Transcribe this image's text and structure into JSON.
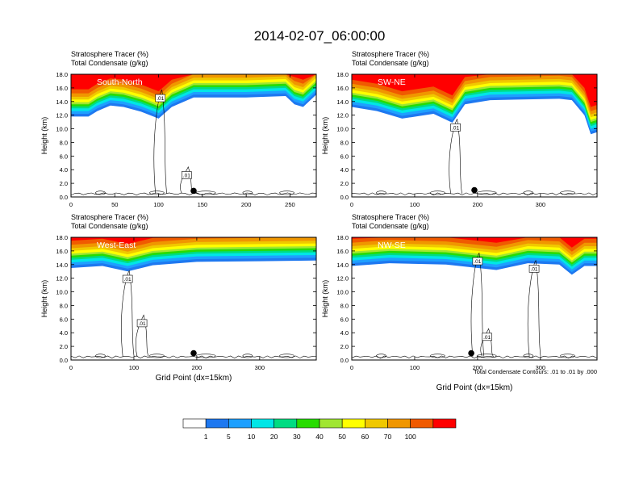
{
  "title": "2014-02-07_06:00:00",
  "panel_header": {
    "line1_name": "Stratosphere Tracer",
    "line1_unit": "(%)",
    "line2_name": "Total Condensate",
    "line2_unit": "(g/kg)"
  },
  "ylabel": "Height (km)",
  "xlabel": "Grid Point (dx=15km)",
  "contour_note": "Total Condensate Contours: .01 to .01 by .000",
  "contour_label": ".01",
  "colorbar": {
    "labels": [
      "1",
      "5",
      "10",
      "20",
      "30",
      "40",
      "50",
      "60",
      "70",
      "100"
    ],
    "colors": [
      "#ffffff",
      "#1e78f0",
      "#1ea0ff",
      "#00e6e6",
      "#00dc82",
      "#28dc00",
      "#a0e632",
      "#ffff00",
      "#f0c800",
      "#f09600",
      "#f05a00",
      "#ff0000"
    ]
  },
  "chart_data": [
    {
      "type": "heatmap",
      "name": "South-North",
      "xlim": [
        0,
        280
      ],
      "ylim": [
        0,
        18
      ],
      "xticks": [
        "0",
        "50",
        "100",
        "150",
        "200",
        "250"
      ],
      "xtick_values": [
        0,
        50,
        100,
        150,
        200,
        250
      ],
      "yticks": [
        "0.0",
        "2.0",
        "4.0",
        "6.0",
        "8.0",
        "10.0",
        "12.0",
        "14.0",
        "16.0",
        "18.0"
      ],
      "tracer_base_km": [
        [
          0,
          11.8
        ],
        [
          20,
          11.8
        ],
        [
          30,
          12.6
        ],
        [
          45,
          13.4
        ],
        [
          60,
          13.2
        ],
        [
          80,
          12.5
        ],
        [
          100,
          11.5
        ],
        [
          115,
          13.2
        ],
        [
          140,
          14.6
        ],
        [
          200,
          14.6
        ],
        [
          245,
          14.8
        ],
        [
          255,
          13.6
        ],
        [
          265,
          13.2
        ],
        [
          280,
          15.0
        ]
      ],
      "marker": {
        "x": 140,
        "y": 0.9
      },
      "contour_labels": [
        {
          "x": 102,
          "y": 14.5
        },
        {
          "x": 132,
          "y": 3.2
        }
      ]
    },
    {
      "type": "heatmap",
      "name": "SW-NE",
      "xlim": [
        0,
        390
      ],
      "ylim": [
        0,
        18
      ],
      "xticks": [
        "0",
        "100",
        "200",
        "300"
      ],
      "xtick_values": [
        0,
        100,
        200,
        300
      ],
      "yticks": [
        "0.0",
        "2.0",
        "4.0",
        "6.0",
        "8.0",
        "10.0",
        "12.0",
        "14.0",
        "16.0",
        "18.0"
      ],
      "tracer_base_km": [
        [
          0,
          13.2
        ],
        [
          40,
          12.6
        ],
        [
          80,
          11.5
        ],
        [
          130,
          12.2
        ],
        [
          160,
          10.9
        ],
        [
          180,
          13.6
        ],
        [
          220,
          14.2
        ],
        [
          330,
          14.4
        ],
        [
          350,
          14.2
        ],
        [
          370,
          12.0
        ],
        [
          380,
          9.2
        ],
        [
          390,
          9.5
        ]
      ],
      "marker": {
        "x": 195,
        "y": 1.0
      },
      "contour_labels": [
        {
          "x": 165,
          "y": 10.2
        }
      ]
    },
    {
      "type": "heatmap",
      "name": "West-East",
      "xlim": [
        0,
        390
      ],
      "ylim": [
        0,
        18
      ],
      "xticks": [
        "0",
        "100",
        "200",
        "300"
      ],
      "xtick_values": [
        0,
        100,
        200,
        300
      ],
      "yticks": [
        "0.0",
        "2.0",
        "4.0",
        "6.0",
        "8.0",
        "10.0",
        "12.0",
        "14.0",
        "16.0",
        "18.0"
      ],
      "tracer_base_km": [
        [
          0,
          13.5
        ],
        [
          50,
          13.8
        ],
        [
          90,
          13.0
        ],
        [
          130,
          13.9
        ],
        [
          200,
          14.4
        ],
        [
          300,
          14.5
        ],
        [
          390,
          14.6
        ]
      ],
      "marker": {
        "x": 195,
        "y": 1.0
      },
      "contour_labels": [
        {
          "x": 90,
          "y": 11.9
        },
        {
          "x": 113,
          "y": 5.4
        }
      ]
    },
    {
      "type": "heatmap",
      "name": "NW-SE",
      "xlim": [
        0,
        390
      ],
      "ylim": [
        0,
        18
      ],
      "xticks": [
        "0",
        "100",
        "200",
        "300"
      ],
      "xtick_values": [
        0,
        100,
        200,
        300
      ],
      "yticks": [
        "0.0",
        "2.0",
        "4.0",
        "6.0",
        "8.0",
        "10.0",
        "12.0",
        "14.0",
        "16.0",
        "18.0"
      ],
      "tracer_base_km": [
        [
          0,
          13.8
        ],
        [
          60,
          14.2
        ],
        [
          150,
          14.0
        ],
        [
          230,
          13.2
        ],
        [
          280,
          14.2
        ],
        [
          330,
          14.0
        ],
        [
          350,
          12.5
        ],
        [
          370,
          13.8
        ],
        [
          390,
          13.8
        ]
      ],
      "marker": {
        "x": 190,
        "y": 1.0
      },
      "contour_labels": [
        {
          "x": 200,
          "y": 14.5
        },
        {
          "x": 290,
          "y": 13.4
        },
        {
          "x": 215,
          "y": 3.4
        }
      ]
    }
  ]
}
